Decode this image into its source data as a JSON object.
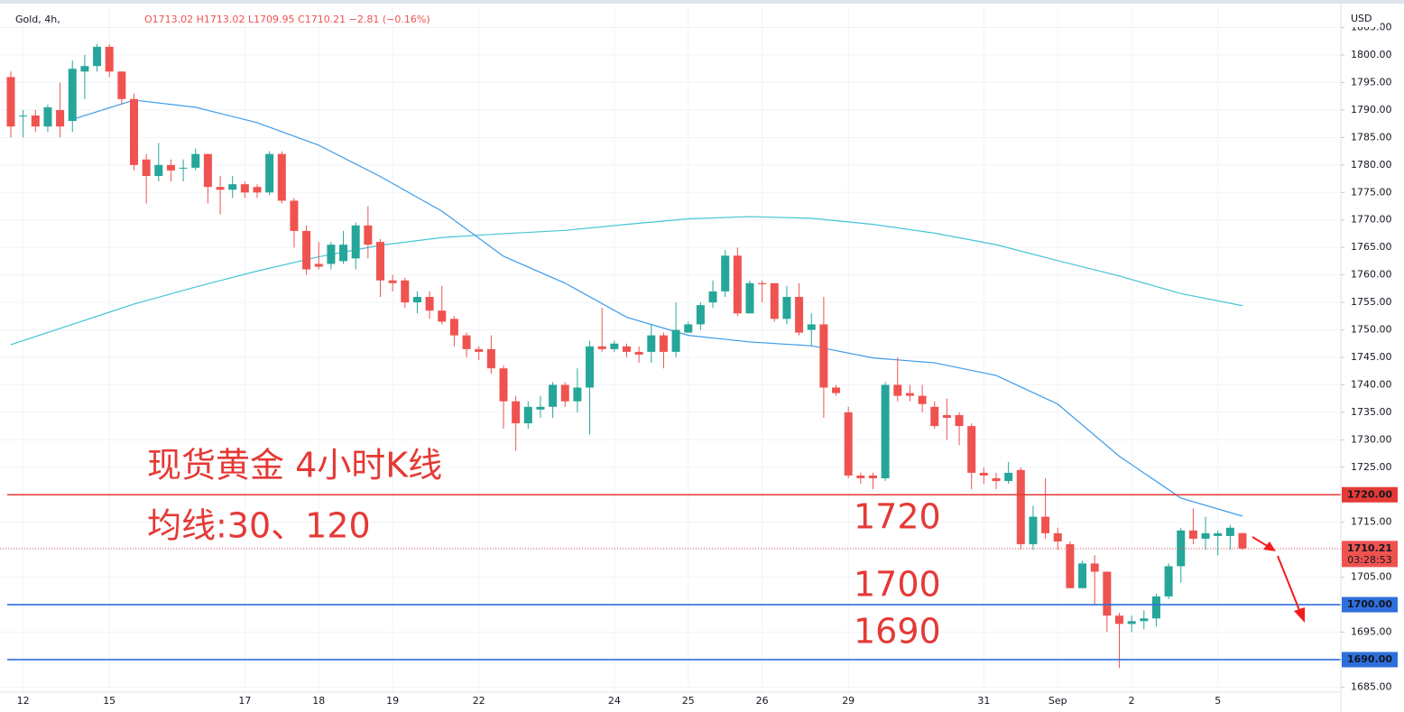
{
  "chart_data": {
    "type": "candlestick",
    "symbol": "Gold, 4h,",
    "ohlc_text": "O1713.02 H1713.02 L1709.95 C1710.21 −2.81 (−0.16%)",
    "currency": "USD",
    "up_color": "#26a69a",
    "down_color": "#ef5350",
    "grid": true,
    "ylim": [
      1684.2,
      1809
    ],
    "yticks": [
      {
        "value": 1685,
        "label": "1685.00"
      },
      {
        "value": 1690,
        "label": "1690.00"
      },
      {
        "value": 1695,
        "label": "1695.00"
      },
      {
        "value": 1700,
        "label": "1700.00"
      },
      {
        "value": 1705,
        "label": "1705.00"
      },
      {
        "value": 1710,
        "label": "1710.00"
      },
      {
        "value": 1715,
        "label": "1715.00"
      },
      {
        "value": 1720,
        "label": "1720.00"
      },
      {
        "value": 1725,
        "label": "1725.00"
      },
      {
        "value": 1730,
        "label": "1730.00"
      },
      {
        "value": 1735,
        "label": "1735.00"
      },
      {
        "value": 1740,
        "label": "1740.00"
      },
      {
        "value": 1745,
        "label": "1745.00"
      },
      {
        "value": 1750,
        "label": "1750.00"
      },
      {
        "value": 1755,
        "label": "1755.00"
      },
      {
        "value": 1760,
        "label": "1760.00"
      },
      {
        "value": 1765,
        "label": "1765.00"
      },
      {
        "value": 1770,
        "label": "1770.00"
      },
      {
        "value": 1775,
        "label": "1775.00"
      },
      {
        "value": 1780,
        "label": "1780.00"
      },
      {
        "value": 1785,
        "label": "1785.00"
      },
      {
        "value": 1790,
        "label": "1790.00"
      },
      {
        "value": 1795,
        "label": "1795.00"
      },
      {
        "value": 1800,
        "label": "1800.00"
      },
      {
        "value": 1805,
        "label": "1805.00"
      }
    ],
    "categories": [
      null,
      "12",
      null,
      null,
      null,
      null,
      null,
      null,
      "15",
      null,
      null,
      null,
      null,
      null,
      null,
      null,
      null,
      null,
      null,
      "17",
      null,
      null,
      null,
      null,
      null,
      "18",
      null,
      null,
      null,
      null,
      null,
      "19",
      null,
      null,
      null,
      null,
      null,
      null,
      "22",
      null,
      null,
      null,
      null,
      null,
      null,
      null,
      null,
      null,
      null,
      "24",
      null,
      null,
      null,
      null,
      null,
      "25",
      null,
      null,
      null,
      null,
      null,
      "26",
      null,
      null,
      null,
      null,
      null,
      null,
      "29",
      null,
      null,
      null,
      null,
      null,
      null,
      null,
      null,
      null,
      null,
      "31",
      null,
      null,
      null,
      null,
      null,
      "Sep",
      null,
      null,
      null,
      null,
      null,
      "2",
      null,
      null,
      null,
      null,
      null,
      null,
      "5",
      null,
      null
    ],
    "open": [
      1796,
      1789,
      1789,
      1787,
      1790,
      1788,
      1797,
      1798,
      1801.5,
      1797,
      1792,
      1781,
      1778,
      1780,
      1779.5,
      1779.5,
      1782,
      1776,
      1775.5,
      1776.5,
      1776,
      1775,
      1782,
      1773.5,
      1768,
      1762,
      1762,
      1762.5,
      1763,
      1769,
      1766,
      1759,
      1759,
      1755,
      1756,
      1753.5,
      1752,
      1749,
      1746.5,
      1746.5,
      1743,
      1737,
      1733,
      1735.5,
      1736,
      1740,
      1737,
      1739.5,
      1747,
      1746.5,
      1747,
      1746,
      1746,
      1749,
      1746,
      1749.5,
      1751,
      1755,
      1757,
      1763.5,
      1753,
      1758.5,
      1758.5,
      1752,
      1756,
      1750,
      1751,
      1739.5,
      1735,
      1723.5,
      1723.5,
      1723,
      1740,
      1738.5,
      1738,
      1736,
      1734.5,
      1734.5,
      1732.5,
      1724,
      1723,
      1722.5,
      1724.5,
      1711,
      1716,
      1713,
      1711,
      1703,
      1707.5,
      1706,
      1698,
      1696.5,
      1697,
      1697.5,
      1701.5,
      1707,
      1713.5,
      1712,
      1712.5,
      1712.5,
      1713.02
    ],
    "high": [
      1797,
      1790,
      1790,
      1791,
      1795,
      1799,
      1800,
      1802,
      1802,
      1797,
      1793,
      1782,
      1784,
      1781,
      1781,
      1783,
      1782,
      1778,
      1778,
      1777,
      1776.5,
      1782.5,
      1782.5,
      1774,
      1769,
      1766,
      1766,
      1768,
      1769.5,
      1772.5,
      1766.5,
      1760,
      1759.5,
      1757,
      1757,
      1758,
      1752.5,
      1749.5,
      1747,
      1749,
      1743.5,
      1738,
      1737,
      1738,
      1740.5,
      1740.5,
      1743,
      1748,
      1754,
      1748,
      1747.5,
      1747,
      1751,
      1749.5,
      1755,
      1751.5,
      1755,
      1759,
      1764.5,
      1765,
      1759,
      1759,
      1758.5,
      1758,
      1758.5,
      1753,
      1756,
      1740,
      1736,
      1724,
      1724,
      1740.5,
      1745,
      1740,
      1740,
      1737,
      1737.5,
      1735,
      1733,
      1725,
      1724,
      1726,
      1725,
      1718,
      1723,
      1714,
      1711.5,
      1708,
      1709,
      1706,
      1698.5,
      1698,
      1699,
      1702,
      1707.5,
      1714,
      1717.5,
      1716,
      1713.5,
      1714.5,
      1713.02
    ],
    "low": [
      1785,
      1785,
      1786,
      1786,
      1785,
      1786,
      1792,
      1797,
      1796,
      1791,
      1779,
      1773,
      1777,
      1777,
      1777,
      1779,
      1773,
      1771,
      1774,
      1774,
      1774,
      1774.5,
      1773,
      1765,
      1760,
      1761,
      1761,
      1762,
      1761,
      1763,
      1756,
      1757,
      1754,
      1753,
      1752,
      1751,
      1747,
      1745,
      1744.5,
      1742,
      1732,
      1728,
      1732,
      1734,
      1734,
      1736,
      1735,
      1731,
      1746,
      1746,
      1745,
      1744,
      1744,
      1743,
      1745,
      1749.5,
      1750,
      1754,
      1756,
      1752.5,
      1753,
      1755,
      1751.5,
      1751,
      1749,
      1747,
      1734,
      1738,
      1723,
      1722,
      1721,
      1722.5,
      1737,
      1737,
      1735,
      1732,
      1730,
      1729,
      1721,
      1722,
      1721,
      1722,
      1710,
      1710,
      1712,
      1710,
      1703,
      1703,
      1700,
      1695,
      1688.5,
      1695,
      1695.5,
      1696,
      1701,
      1704,
      1711,
      1710,
      1709,
      1710,
      1709.95
    ],
    "close": [
      1787,
      1789,
      1787,
      1790.5,
      1787,
      1797.5,
      1798,
      1801.5,
      1797,
      1792,
      1780,
      1778,
      1780,
      1779,
      1779.5,
      1782,
      1776,
      1775.5,
      1776.5,
      1775,
      1775,
      1782,
      1773.5,
      1768,
      1761,
      1761.5,
      1765.5,
      1765.5,
      1769,
      1765.5,
      1759,
      1758.5,
      1755,
      1756,
      1753.5,
      1751.5,
      1749,
      1746.5,
      1746,
      1743,
      1737,
      1733,
      1736,
      1736,
      1740,
      1737,
      1739.5,
      1747,
      1746.5,
      1747.5,
      1746,
      1745.5,
      1749,
      1746,
      1750,
      1751,
      1754.5,
      1757,
      1763.5,
      1753,
      1758.5,
      1758.3,
      1752,
      1756,
      1749.5,
      1751,
      1739.5,
      1738.5,
      1723.5,
      1723,
      1723,
      1740,
      1738,
      1738,
      1736.5,
      1732.5,
      1734,
      1732.5,
      1724,
      1723.5,
      1722.5,
      1724,
      1711,
      1716,
      1713,
      1711.5,
      1703,
      1707.5,
      1706,
      1698,
      1696.5,
      1697,
      1697.5,
      1701.5,
      1707,
      1713.5,
      1712,
      1713,
      1713,
      1714,
      1710.21
    ],
    "overlays": [
      {
        "color": "#45c4d6",
        "x": [
          0,
          5,
          10,
          15,
          20,
          25,
          30,
          35,
          40,
          45,
          50,
          55,
          60,
          65,
          70,
          75,
          80,
          85,
          90,
          95,
          100
        ],
        "values": [
          1747.3,
          1751,
          1754.7,
          1757.8,
          1760.7,
          1763.3,
          1765.4,
          1766.8,
          1767.5,
          1768.1,
          1769.2,
          1770.2,
          1770.6,
          1770.3,
          1769.2,
          1767.6,
          1765.5,
          1762.6,
          1759.8,
          1756.6,
          1754.4
        ]
      },
      {
        "color": "#3d9be9",
        "x": [
          5,
          10,
          15,
          20,
          25,
          30,
          35,
          40,
          45,
          50,
          55,
          60,
          65,
          70,
          75,
          80,
          85,
          90,
          95,
          100
        ],
        "values": [
          1788.3,
          1791.8,
          1790.5,
          1787.7,
          1783.6,
          1777.9,
          1771.6,
          1763.4,
          1758.5,
          1752.3,
          1749,
          1747.8,
          1747.1,
          1744.9,
          1744,
          1741.7,
          1736.5,
          1727,
          1719.4,
          1716.1
        ]
      }
    ],
    "hlines": [
      {
        "value": 1720,
        "label": "1720.00",
        "color": "#e53935"
      },
      {
        "value": 1700,
        "label": "1700.00",
        "color": "#2e6fdc"
      },
      {
        "value": 1690,
        "label": "1690.00",
        "color": "#2e6fdc"
      }
    ],
    "last_price": {
      "value": 1710.21,
      "label": "1710.21",
      "countdown": "03:28:53",
      "color": "#ef5350"
    },
    "annotations": [
      "现货黄金 4小时K线",
      "均线:30、120",
      "1720",
      "1700",
      "1690"
    ]
  }
}
